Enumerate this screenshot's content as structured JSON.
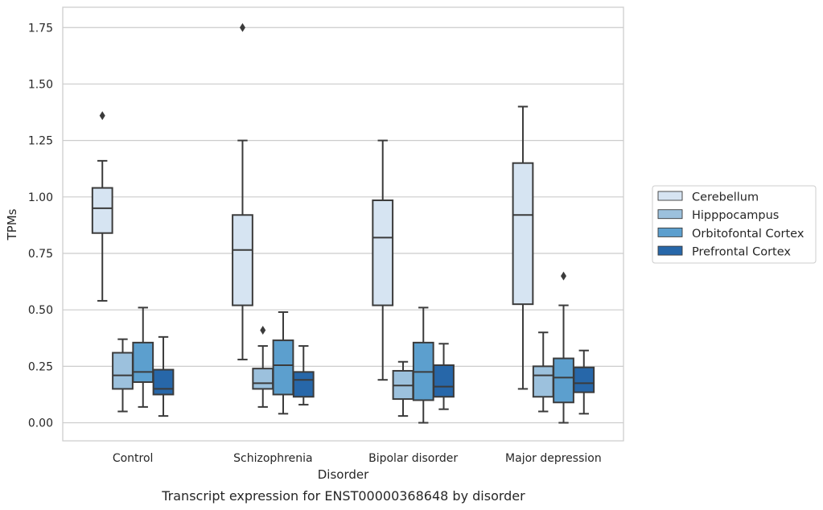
{
  "chart_data": {
    "type": "boxplot",
    "caption": "Transcript expression for ENST00000368648 by disorder",
    "xlabel": "Disorder",
    "ylabel": "TPMs",
    "ylim": [
      -0.08,
      1.84
    ],
    "yticks": [
      "0.00",
      "0.25",
      "0.50",
      "0.75",
      "1.00",
      "1.25",
      "1.50",
      "1.75"
    ],
    "grid": "horizontal",
    "legend_position": "right",
    "categories": [
      "Control",
      "Schizophrenia",
      "Bipolar disorder",
      "Major depression"
    ],
    "series": [
      {
        "name": "Cerebellum",
        "color": "#d6e4f2",
        "boxes": [
          {
            "whislo": 0.54,
            "q1": 0.84,
            "med": 0.95,
            "q3": 1.04,
            "whishi": 1.16,
            "fliers": [
              1.36
            ]
          },
          {
            "whislo": 0.28,
            "q1": 0.52,
            "med": 0.765,
            "q3": 0.92,
            "whishi": 1.25,
            "fliers": [
              1.75
            ]
          },
          {
            "whislo": 0.19,
            "q1": 0.52,
            "med": 0.82,
            "q3": 0.985,
            "whishi": 1.25,
            "fliers": []
          },
          {
            "whislo": 0.15,
            "q1": 0.525,
            "med": 0.92,
            "q3": 1.15,
            "whishi": 1.4,
            "fliers": []
          }
        ]
      },
      {
        "name": "Hipppocampus",
        "color": "#9cc1dd",
        "boxes": [
          {
            "whislo": 0.05,
            "q1": 0.15,
            "med": 0.21,
            "q3": 0.31,
            "whishi": 0.37,
            "fliers": []
          },
          {
            "whislo": 0.07,
            "q1": 0.15,
            "med": 0.175,
            "q3": 0.24,
            "whishi": 0.34,
            "fliers": [
              0.41
            ]
          },
          {
            "whislo": 0.03,
            "q1": 0.105,
            "med": 0.165,
            "q3": 0.23,
            "whishi": 0.27,
            "fliers": []
          },
          {
            "whislo": 0.05,
            "q1": 0.115,
            "med": 0.21,
            "q3": 0.25,
            "whishi": 0.4,
            "fliers": []
          }
        ]
      },
      {
        "name": "Orbitofontal Cortex",
        "color": "#5c9fce",
        "boxes": [
          {
            "whislo": 0.07,
            "q1": 0.18,
            "med": 0.225,
            "q3": 0.355,
            "whishi": 0.51,
            "fliers": []
          },
          {
            "whislo": 0.04,
            "q1": 0.125,
            "med": 0.255,
            "q3": 0.365,
            "whishi": 0.49,
            "fliers": []
          },
          {
            "whislo": 0.0,
            "q1": 0.1,
            "med": 0.225,
            "q3": 0.355,
            "whishi": 0.51,
            "fliers": []
          },
          {
            "whislo": 0.0,
            "q1": 0.09,
            "med": 0.2,
            "q3": 0.285,
            "whishi": 0.52,
            "fliers": [
              0.65
            ]
          }
        ]
      },
      {
        "name": "Prefrontal Cortex",
        "color": "#2767a9",
        "boxes": [
          {
            "whislo": 0.03,
            "q1": 0.125,
            "med": 0.15,
            "q3": 0.235,
            "whishi": 0.38,
            "fliers": []
          },
          {
            "whislo": 0.08,
            "q1": 0.115,
            "med": 0.19,
            "q3": 0.225,
            "whishi": 0.34,
            "fliers": []
          },
          {
            "whislo": 0.06,
            "q1": 0.115,
            "med": 0.16,
            "q3": 0.255,
            "whishi": 0.35,
            "fliers": []
          },
          {
            "whislo": 0.04,
            "q1": 0.135,
            "med": 0.175,
            "q3": 0.245,
            "whishi": 0.32,
            "fliers": []
          }
        ]
      }
    ]
  }
}
